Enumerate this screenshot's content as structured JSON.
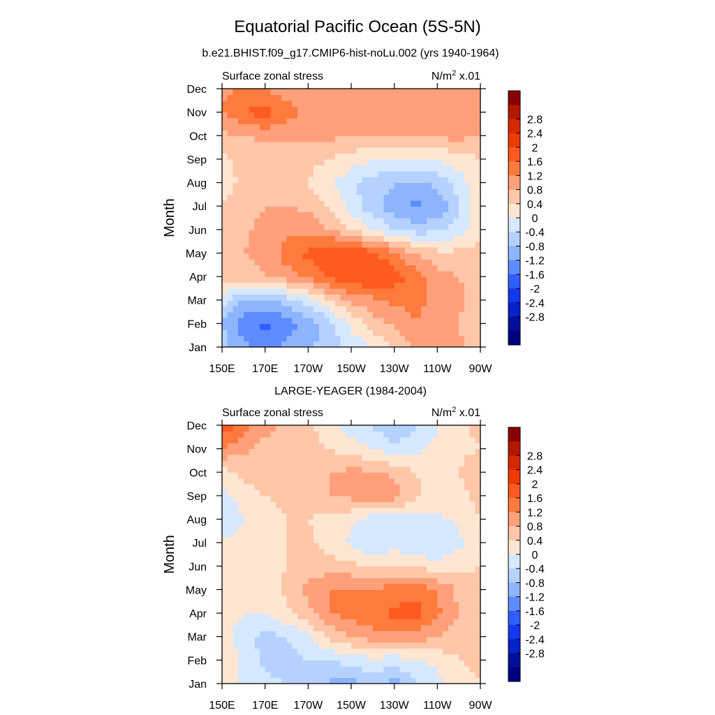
{
  "figure": {
    "title": "Equatorial Pacific Ocean (5S-5N)",
    "panel_titles": [
      "b.e21.BHIST.f09_g17.CMIP6-hist-noLu.002 (yrs 1940-1964)",
      "LARGE-YEAGER (1984-2004)"
    ]
  },
  "colorbar": {
    "labels": [
      "2.8",
      "2.4",
      "2",
      "1.6",
      "1.2",
      "0.8",
      "0.4",
      "0",
      "-0.4",
      "-0.8",
      "-1.2",
      "-1.6",
      "-2",
      "-2.4",
      "-2.8"
    ],
    "colors": [
      "#8b0000",
      "#b41800",
      "#d62900",
      "#ef3a00",
      "#ff5a1f",
      "#ff7a3d",
      "#ffa07a",
      "#ffc6a8",
      "#ffe6d3",
      "#d6e8ff",
      "#b5d2ff",
      "#8db4ff",
      "#5e8cff",
      "#2f5fff",
      "#1339f0",
      "#0521c8",
      "#00109a",
      "#000080"
    ]
  },
  "chart_data": [
    {
      "type": "heatmap",
      "title": "b.e21.BHIST.f09_g17.CMIP6-hist-noLu.002 (yrs 1940-1964)",
      "left_label": "Surface zonal stress",
      "right_label": "x.01",
      "unit_base": "N/m",
      "unit_exp": "2",
      "ylabel": "Month",
      "xticks": [
        "150E",
        "170E",
        "170W",
        "150W",
        "130W",
        "110W",
        "90W"
      ],
      "yticks": [
        "Jan",
        "Feb",
        "Mar",
        "Apr",
        "May",
        "Jun",
        "Jul",
        "Aug",
        "Sep",
        "Oct",
        "Nov",
        "Dec"
      ],
      "xrange": [
        150,
        270
      ],
      "x": [
        150,
        160,
        170,
        180,
        190,
        200,
        210,
        220,
        230,
        240,
        250,
        260,
        270
      ],
      "values": [
        [
          -1.0,
          -1.5,
          -1.7,
          -1.5,
          -1.3,
          -1.0,
          -0.7,
          -0.4,
          0.0,
          0.4,
          0.6,
          0.5,
          0.2
        ],
        [
          -1.2,
          -1.8,
          -2.1,
          -1.8,
          -1.4,
          -1.0,
          -0.3,
          0.2,
          0.5,
          0.8,
          0.6,
          0.4,
          0.1
        ],
        [
          -0.6,
          -1.2,
          -1.3,
          -1.0,
          -0.6,
          0.0,
          0.5,
          0.7,
          0.9,
          0.9,
          0.7,
          0.5,
          0.2
        ],
        [
          0.2,
          0.3,
          0.4,
          0.6,
          0.9,
          1.3,
          1.5,
          1.6,
          1.4,
          1.0,
          0.6,
          0.4,
          0.2
        ],
        [
          0.3,
          0.4,
          0.5,
          1.0,
          1.3,
          1.6,
          1.6,
          1.3,
          0.9,
          0.4,
          0.1,
          0.1,
          0.1
        ],
        [
          0.1,
          0.3,
          0.6,
          0.7,
          0.7,
          0.4,
          0.0,
          -0.4,
          -0.8,
          -1.0,
          -0.9,
          -0.6,
          0.0
        ],
        [
          0.0,
          0.2,
          0.4,
          0.4,
          0.3,
          0.0,
          -0.6,
          -1.1,
          -1.4,
          -1.7,
          -1.5,
          -0.9,
          -0.1
        ],
        [
          -0.2,
          0.1,
          0.2,
          0.2,
          0.0,
          -0.3,
          -0.7,
          -1.0,
          -1.2,
          -1.3,
          -1.1,
          -0.6,
          -0.1
        ],
        [
          -0.1,
          0.1,
          0.2,
          0.2,
          0.1,
          0.0,
          -0.2,
          -0.4,
          -0.5,
          -0.5,
          -0.4,
          -0.2,
          0.0
        ],
        [
          0.3,
          0.4,
          0.5,
          0.5,
          0.5,
          0.5,
          0.4,
          0.4,
          0.5,
          0.5,
          0.5,
          0.5,
          0.4
        ],
        [
          0.8,
          1.2,
          1.4,
          1.0,
          0.7,
          0.6,
          0.5,
          0.6,
          0.6,
          0.6,
          0.6,
          0.7,
          0.5
        ],
        [
          0.7,
          0.9,
          0.8,
          0.6,
          0.5,
          0.5,
          0.5,
          0.5,
          0.5,
          0.6,
          0.6,
          0.6,
          0.5
        ]
      ]
    },
    {
      "type": "heatmap",
      "title": "LARGE-YEAGER (1984-2004)",
      "left_label": "Surface zonal stress",
      "right_label": "x.01",
      "unit_base": "N/m",
      "unit_exp": "2",
      "ylabel": "Month",
      "xticks": [
        "150E",
        "170E",
        "170W",
        "150W",
        "130W",
        "110W",
        "90W"
      ],
      "yticks": [
        "Jan",
        "Feb",
        "Mar",
        "Apr",
        "May",
        "Jun",
        "Jul",
        "Aug",
        "Sep",
        "Oct",
        "Nov",
        "Dec"
      ],
      "xrange": [
        150,
        270
      ],
      "x": [
        150,
        160,
        170,
        180,
        190,
        200,
        210,
        220,
        230,
        240,
        250,
        260,
        270
      ],
      "values": [
        [
          -0.1,
          -0.5,
          -0.7,
          -0.8,
          -0.9,
          -1.3,
          -1.4,
          -1.0,
          -1.4,
          -0.9,
          -0.5,
          -0.2,
          0.0
        ],
        [
          -0.1,
          -0.5,
          -0.9,
          -1.0,
          -0.8,
          -0.8,
          -0.6,
          -0.5,
          -0.6,
          -0.4,
          -0.3,
          0.0,
          0.1
        ],
        [
          -0.2,
          -0.6,
          -1.0,
          -0.8,
          -0.5,
          0.1,
          0.4,
          0.6,
          0.7,
          0.6,
          0.4,
          0.2,
          0.1
        ],
        [
          -0.2,
          -0.4,
          -0.4,
          -0.1,
          0.3,
          0.8,
          1.0,
          1.1,
          1.3,
          1.4,
          0.9,
          0.4,
          0.2
        ],
        [
          -0.3,
          -0.4,
          -0.3,
          0.1,
          0.5,
          0.8,
          0.9,
          0.8,
          1.0,
          1.1,
          0.8,
          0.3,
          0.1
        ],
        [
          -0.1,
          -0.3,
          -0.2,
          0.0,
          0.2,
          0.2,
          0.1,
          0.0,
          0.0,
          -0.1,
          -0.2,
          -0.1,
          0.0
        ],
        [
          -0.3,
          -0.2,
          -0.1,
          0.0,
          0.1,
          -0.2,
          -0.5,
          -0.8,
          -0.6,
          -0.8,
          -0.8,
          -0.5,
          -0.1
        ],
        [
          -0.8,
          -0.4,
          -0.2,
          0.0,
          0.0,
          -0.2,
          -0.3,
          -0.6,
          -0.7,
          -0.6,
          -0.5,
          -0.3,
          0.0
        ],
        [
          -0.5,
          -0.2,
          0.0,
          0.2,
          0.3,
          0.4,
          0.5,
          0.7,
          0.6,
          0.1,
          -0.2,
          -0.2,
          0.2
        ],
        [
          -0.2,
          0.1,
          0.3,
          0.3,
          0.3,
          0.4,
          0.5,
          0.5,
          0.3,
          0.0,
          -0.2,
          0.0,
          0.3
        ],
        [
          0.8,
          0.5,
          0.2,
          0.2,
          0.2,
          0.0,
          -0.2,
          -0.4,
          -0.6,
          -0.5,
          -0.3,
          -0.1,
          0.0
        ],
        [
          1.5,
          1.0,
          0.6,
          0.3,
          0.1,
          -0.3,
          -0.6,
          -0.8,
          -1.3,
          -0.8,
          -0.4,
          -0.1,
          0.1
        ]
      ]
    }
  ]
}
